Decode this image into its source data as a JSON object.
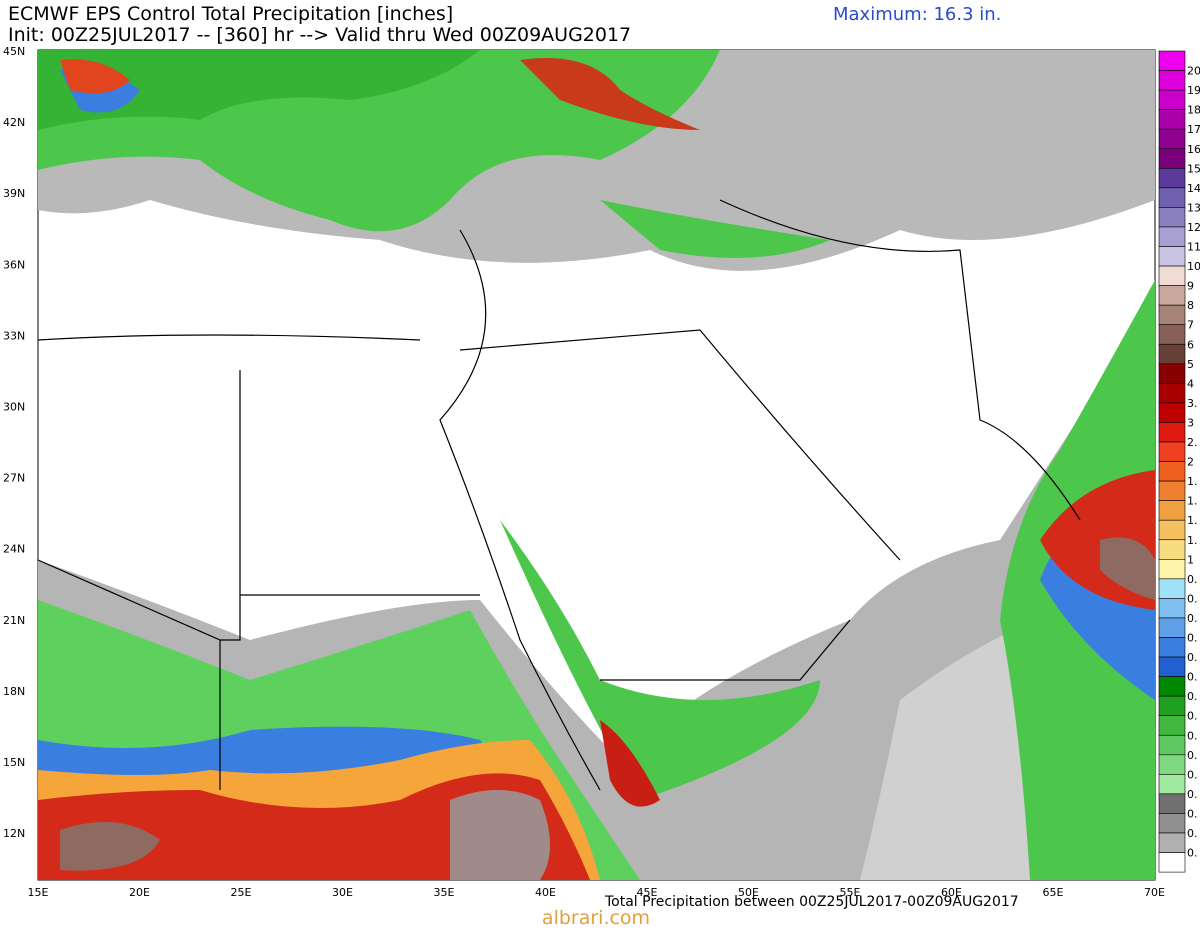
{
  "header": {
    "title": "ECMWF EPS Control Total Precipitation [inches]",
    "init": "Init: 00Z25JUL2017 -- [360] hr --> Valid thru Wed 00Z09AUG2017",
    "maximum": "Maximum: 16.3 in."
  },
  "map": {
    "lat_labels": [
      "45N",
      "42N",
      "39N",
      "36N",
      "33N",
      "30N",
      "27N",
      "24N",
      "21N",
      "18N",
      "15N",
      "12N"
    ],
    "lon_labels": [
      "15E",
      "20E",
      "25E",
      "30E",
      "35E",
      "40E",
      "45E",
      "50E",
      "55E",
      "60E",
      "65E",
      "70E"
    ]
  },
  "colorbar": {
    "labels": [
      "20",
      "19",
      "18",
      "17",
      "16",
      "15",
      "14",
      "13",
      "12",
      "11",
      "10",
      "9",
      "8",
      "7",
      "6",
      "5",
      "4",
      "3.",
      "3",
      "2.",
      "2",
      "1.",
      "1.",
      "1.",
      "1.",
      "1",
      "0.",
      "0.",
      "0.",
      "0.",
      "0.",
      "0.",
      "0.",
      "0.",
      "0.",
      "0.",
      "0.",
      "0.",
      "0.",
      "0.",
      "0."
    ]
  },
  "footer": {
    "caption": "Total Precipitation between 00Z25JUL2017-00Z09AUG2017"
  },
  "watermark": "albrari.com"
}
